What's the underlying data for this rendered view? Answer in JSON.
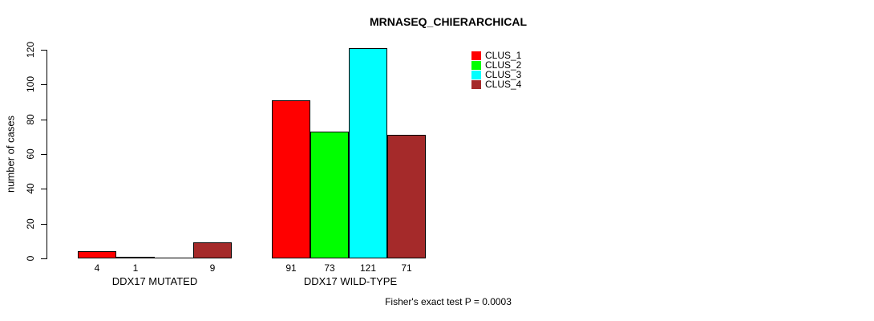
{
  "title": "MRNASEQ_CHIERARCHICAL",
  "footer": "Fisher's exact test P = 0.0003",
  "chart_data": {
    "type": "bar",
    "title": "MRNASEQ_CHIERARCHICAL",
    "xlabel": "",
    "ylabel": "number of cases",
    "ylim": [
      0,
      125
    ],
    "y_ticks": [
      0,
      20,
      40,
      60,
      80,
      100,
      120
    ],
    "grid": false,
    "legend_position": "top-right",
    "series_names": [
      "CLUS_1",
      "CLUS_2",
      "CLUS_3",
      "CLUS_4"
    ],
    "series_colors": [
      "#ff0000",
      "#00ff00",
      "#00ffff",
      "#a52a2a"
    ],
    "groups": [
      {
        "label": "DDX17 MUTATED",
        "values": [
          4,
          1,
          0,
          9
        ],
        "value_labels": [
          "4",
          "1",
          "",
          "9"
        ]
      },
      {
        "label": "DDX17 WILD-TYPE",
        "values": [
          91,
          73,
          121,
          71
        ],
        "value_labels": [
          "91",
          "73",
          "121",
          "71"
        ]
      }
    ],
    "annotation": "Fisher's exact test P = 0.0003"
  }
}
